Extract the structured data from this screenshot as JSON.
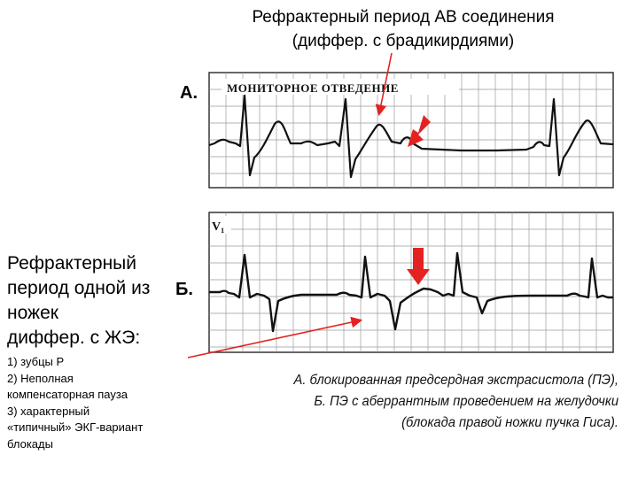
{
  "title": {
    "line1": "Рефрактерный период АВ соединения",
    "line2": "(диффер.  с брадикирдиями)"
  },
  "left": {
    "heading_lines": [
      "Рефрактерный",
      "период одной из",
      "ножек",
      "диффер.  с ЖЭ:"
    ],
    "list": [
      "1) зубцы Р",
      "2)  Неполная",
      "компенсаторная пауза",
      "3) характерный",
      "«типичный» ЭКГ-вариант",
      "блокады"
    ]
  },
  "panel_a": {
    "letter": "А.",
    "header_label": "МОНИТОРНОЕ ОТВЕДЕНИЕ"
  },
  "panel_b": {
    "letter": "Б.",
    "lead_label": "V₁"
  },
  "caption": {
    "lines": [
      "А. блокированная предсердная экстрасистола (ПЭ),",
      "Б. ПЭ с аберрантным проведением на желудочки",
      "(блокада правой ножки пучка Гиса)."
    ]
  },
  "colors": {
    "annotation_red": "#e32222",
    "trace": "#111111",
    "grid": "#9a9a9a"
  }
}
